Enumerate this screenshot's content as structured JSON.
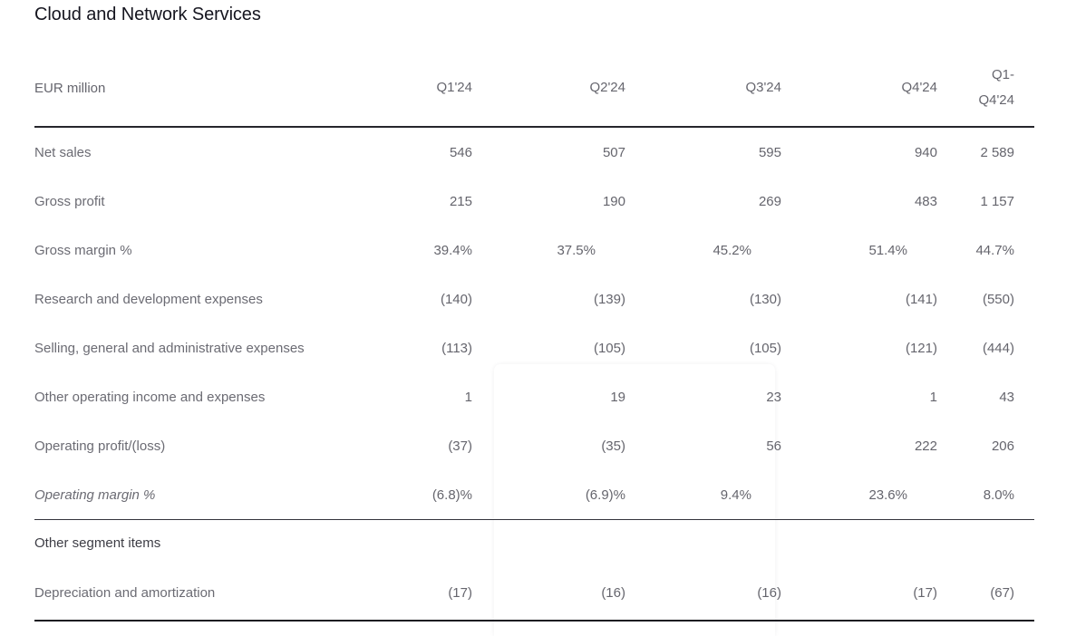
{
  "page": {
    "title": "Cloud and Network Services"
  },
  "table": {
    "unit_label": "EUR million",
    "columns": [
      "Q1'24",
      "Q2'24",
      "Q3'24",
      "Q4'24",
      "Q1-\nQ4'24"
    ],
    "rows": [
      {
        "label": "Net sales",
        "style": "normal",
        "values": [
          "546",
          "507",
          "595",
          "940",
          "2 589"
        ],
        "offsets": [
          0,
          0,
          0,
          0,
          0
        ]
      },
      {
        "label": "Gross profit",
        "style": "normal",
        "values": [
          "215",
          "190",
          "269",
          "483",
          "1 157"
        ],
        "offsets": [
          0,
          0,
          0,
          0,
          0
        ]
      },
      {
        "label": "Gross margin %",
        "style": "normal",
        "values": [
          "39.4%",
          "37.5%",
          "45.2%",
          "51.4%",
          "44.7%"
        ],
        "offsets": [
          0,
          1,
          1,
          1,
          0
        ]
      },
      {
        "label": "Research and development expenses",
        "style": "normal",
        "values": [
          "(140)",
          "(139)",
          "(130)",
          "(141)",
          "(550)"
        ],
        "offsets": [
          0,
          0,
          0,
          0,
          0
        ]
      },
      {
        "label": "Selling, general and administrative expenses",
        "style": "normal",
        "values": [
          "(113)",
          "(105)",
          "(105)",
          "(121)",
          "(444)"
        ],
        "offsets": [
          0,
          0,
          0,
          0,
          0
        ]
      },
      {
        "label": "Other operating income and expenses",
        "style": "normal",
        "values": [
          "1",
          "19",
          "23",
          "1",
          "43"
        ],
        "offsets": [
          0,
          0,
          0,
          0,
          0
        ]
      },
      {
        "label": "Operating profit/(loss)",
        "style": "normal",
        "values": [
          "(37)",
          "(35)",
          "56",
          "222",
          "206"
        ],
        "offsets": [
          0,
          0,
          0,
          0,
          0
        ]
      },
      {
        "label": "Operating margin %",
        "style": "italic",
        "values": [
          "(6.8)%",
          "(6.9)%",
          "9.4%",
          "23.6%",
          "8.0%"
        ],
        "offsets": [
          0,
          0,
          1,
          1,
          0
        ]
      },
      {
        "label": "Other segment items",
        "style": "section",
        "values": [],
        "offsets": []
      },
      {
        "label": "Depreciation and amortization",
        "style": "normal",
        "values": [
          "(17)",
          "(16)",
          "(16)",
          "(17)",
          "(67)"
        ],
        "offsets": [
          0,
          0,
          0,
          0,
          0
        ]
      }
    ]
  }
}
